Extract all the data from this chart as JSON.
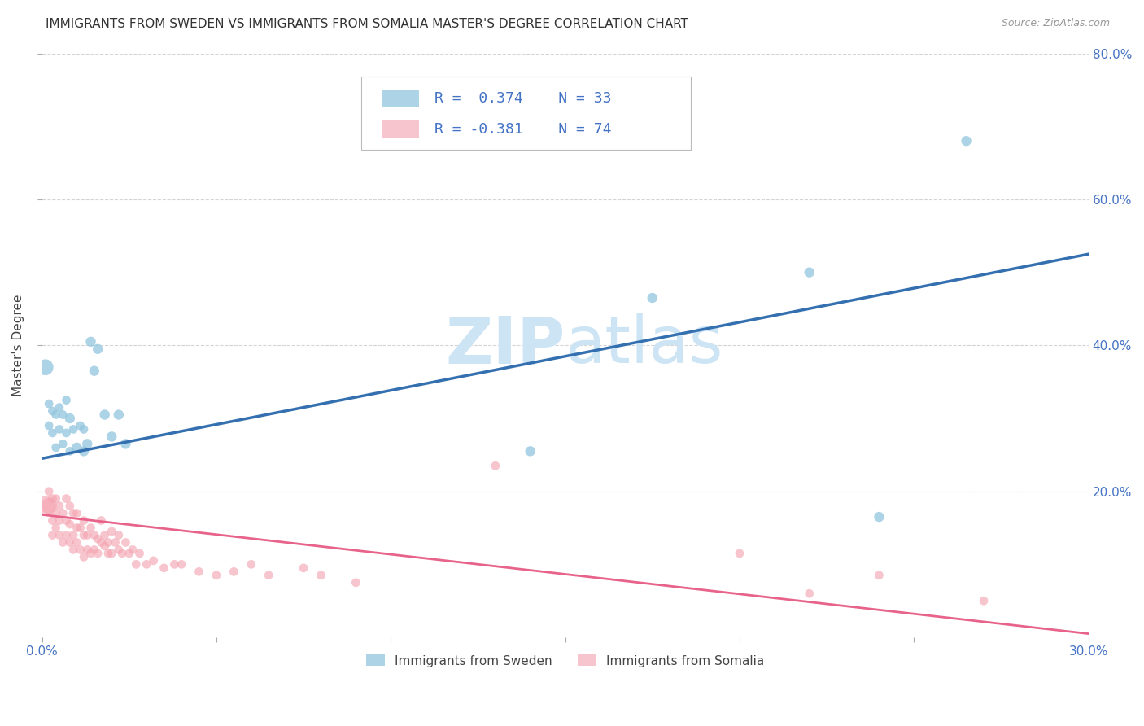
{
  "title": "IMMIGRANTS FROM SWEDEN VS IMMIGRANTS FROM SOMALIA MASTER'S DEGREE CORRELATION CHART",
  "source": "Source: ZipAtlas.com",
  "ylabel": "Master's Degree",
  "xlim": [
    0.0,
    0.3
  ],
  "ylim": [
    0.0,
    0.8
  ],
  "xtick_vals": [
    0.0,
    0.05,
    0.1,
    0.15,
    0.2,
    0.25,
    0.3
  ],
  "xtick_show_labels": [
    true,
    false,
    false,
    false,
    false,
    false,
    true
  ],
  "xtick_labels": [
    "0.0%",
    "",
    "",
    "",
    "",
    "",
    "30.0%"
  ],
  "ytick_vals": [
    0.2,
    0.4,
    0.6,
    0.8
  ],
  "right_ytick_labels": [
    "80.0%",
    "60.0%",
    "40.0%",
    "20.0%"
  ],
  "right_ytick_vals": [
    0.8,
    0.6,
    0.4,
    0.2
  ],
  "sweden_color": "#92c5de",
  "somalia_color": "#f4a6b2",
  "sweden_line_color": "#3470b0",
  "somalia_line_color": "#e8638a",
  "sweden_R": 0.374,
  "sweden_N": 33,
  "somalia_R": -0.381,
  "somalia_N": 74,
  "watermark_zip": "ZIP",
  "watermark_atlas": "atlas",
  "watermark_color": "#cce4f4",
  "sweden_scatter_x": [
    0.001,
    0.002,
    0.002,
    0.003,
    0.003,
    0.004,
    0.004,
    0.005,
    0.005,
    0.006,
    0.006,
    0.007,
    0.007,
    0.008,
    0.008,
    0.009,
    0.01,
    0.011,
    0.012,
    0.012,
    0.013,
    0.014,
    0.015,
    0.016,
    0.018,
    0.02,
    0.022,
    0.024,
    0.14,
    0.175,
    0.22,
    0.24,
    0.265
  ],
  "sweden_scatter_y": [
    0.37,
    0.29,
    0.32,
    0.28,
    0.31,
    0.26,
    0.305,
    0.285,
    0.315,
    0.265,
    0.305,
    0.28,
    0.325,
    0.255,
    0.3,
    0.285,
    0.26,
    0.29,
    0.255,
    0.285,
    0.265,
    0.405,
    0.365,
    0.395,
    0.305,
    0.275,
    0.305,
    0.265,
    0.255,
    0.465,
    0.5,
    0.165,
    0.68
  ],
  "sweden_scatter_sizes": [
    200,
    60,
    60,
    60,
    60,
    60,
    60,
    60,
    60,
    60,
    60,
    60,
    60,
    60,
    80,
    60,
    80,
    60,
    80,
    60,
    80,
    80,
    80,
    80,
    80,
    80,
    80,
    80,
    80,
    80,
    80,
    80,
    80
  ],
  "somalia_scatter_x": [
    0.001,
    0.002,
    0.002,
    0.003,
    0.003,
    0.003,
    0.004,
    0.004,
    0.004,
    0.005,
    0.005,
    0.005,
    0.006,
    0.006,
    0.007,
    0.007,
    0.007,
    0.008,
    0.008,
    0.008,
    0.009,
    0.009,
    0.009,
    0.01,
    0.01,
    0.01,
    0.011,
    0.011,
    0.012,
    0.012,
    0.012,
    0.013,
    0.013,
    0.014,
    0.014,
    0.015,
    0.015,
    0.016,
    0.016,
    0.017,
    0.017,
    0.018,
    0.018,
    0.019,
    0.019,
    0.02,
    0.02,
    0.021,
    0.022,
    0.022,
    0.023,
    0.024,
    0.025,
    0.026,
    0.027,
    0.028,
    0.03,
    0.032,
    0.035,
    0.038,
    0.04,
    0.045,
    0.05,
    0.055,
    0.06,
    0.065,
    0.075,
    0.08,
    0.09,
    0.13,
    0.2,
    0.22,
    0.24,
    0.27
  ],
  "somalia_scatter_y": [
    0.18,
    0.18,
    0.2,
    0.14,
    0.16,
    0.19,
    0.15,
    0.17,
    0.19,
    0.14,
    0.16,
    0.18,
    0.13,
    0.17,
    0.14,
    0.16,
    0.19,
    0.13,
    0.155,
    0.18,
    0.12,
    0.14,
    0.17,
    0.13,
    0.15,
    0.17,
    0.12,
    0.15,
    0.11,
    0.14,
    0.16,
    0.12,
    0.14,
    0.115,
    0.15,
    0.12,
    0.14,
    0.115,
    0.135,
    0.13,
    0.16,
    0.125,
    0.14,
    0.115,
    0.13,
    0.115,
    0.145,
    0.13,
    0.12,
    0.14,
    0.115,
    0.13,
    0.115,
    0.12,
    0.1,
    0.115,
    0.1,
    0.105,
    0.095,
    0.1,
    0.1,
    0.09,
    0.085,
    0.09,
    0.1,
    0.085,
    0.095,
    0.085,
    0.075,
    0.235,
    0.115,
    0.06,
    0.085,
    0.05
  ],
  "somalia_scatter_sizes": [
    300,
    200,
    60,
    60,
    60,
    60,
    60,
    60,
    60,
    60,
    60,
    60,
    60,
    60,
    60,
    60,
    60,
    60,
    60,
    60,
    60,
    60,
    60,
    60,
    60,
    60,
    60,
    60,
    60,
    60,
    60,
    60,
    60,
    60,
    60,
    60,
    60,
    60,
    60,
    60,
    60,
    60,
    60,
    60,
    60,
    60,
    60,
    60,
    60,
    60,
    60,
    60,
    60,
    60,
    60,
    60,
    60,
    60,
    60,
    60,
    60,
    60,
    60,
    60,
    60,
    60,
    60,
    60,
    60,
    60,
    60,
    60,
    60,
    60
  ],
  "sweden_line_x": [
    0.0,
    0.3
  ],
  "sweden_line_y": [
    0.245,
    0.525
  ],
  "somalia_line_x": [
    0.0,
    0.3
  ],
  "somalia_line_y": [
    0.168,
    0.005
  ],
  "grid_color": "#d0d0d0",
  "background_color": "#ffffff",
  "title_fontsize": 11,
  "axis_label_fontsize": 11,
  "tick_fontsize": 11,
  "legend_fontsize": 13
}
